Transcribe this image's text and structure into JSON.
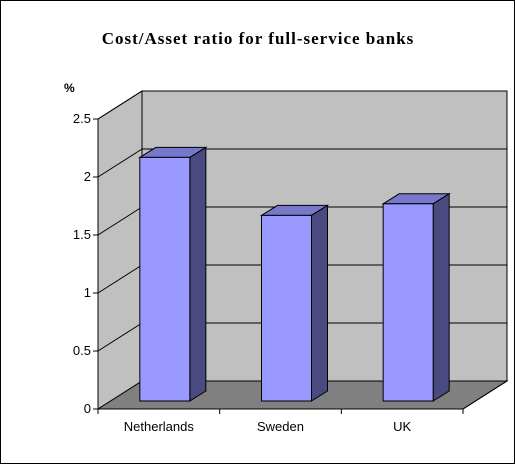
{
  "chart_data": {
    "type": "bar",
    "title": "Cost/Asset ratio for full-service banks",
    "ylabel": "%",
    "xlabel": "",
    "categories": [
      "Netherlands",
      "Sweden",
      "UK"
    ],
    "values": [
      2.1,
      1.6,
      1.7
    ],
    "ylim": [
      0,
      2.5
    ],
    "yticks": [
      "0",
      "0.5",
      "1",
      "1.5",
      "2",
      "2.5"
    ],
    "grid": true,
    "legend": "none",
    "style": "3d",
    "colors": {
      "bar_front": "#9999ff",
      "bar_side": "#4a4a80",
      "bar_top": "#7777cc",
      "back_wall": "#c0c0c0",
      "side_wall": "#c0c0c0",
      "floor": "#808080",
      "gridline": "#000000",
      "outline": "#000000"
    }
  }
}
